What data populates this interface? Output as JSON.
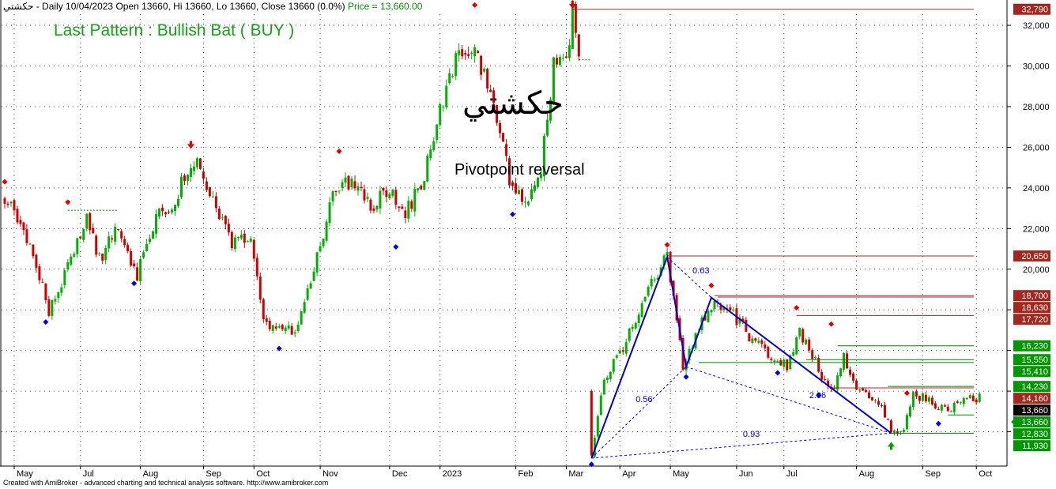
{
  "header": {
    "symbol": "حكشتي",
    "info": " - Daily 10/04/2023 Open 13660, Hi 13660, Lo 13660, Close 13660 (0.0%)",
    "price_text": "Price = 13,660.00"
  },
  "annotations": {
    "pattern_label": "Last Pattern : Bullish Bat ( BUY )",
    "watermark": "حكشتي",
    "pivot_label": "Pivotpoint reversal"
  },
  "footer": "Created with AmiBroker - advanced charting and technical analysis software. http://www.amibroker.com",
  "colors": {
    "bull": "#00b000",
    "bear": "#d00000",
    "pattern_line": "#0000c8",
    "level_red": "#a52a2a",
    "level_green": "#008000",
    "label_red": "#a0281e",
    "label_green": "#009600",
    "label_black": "#000000",
    "grid": "#000000"
  },
  "chart_data": {
    "type": "candlestick",
    "y_axis": {
      "min": 10000,
      "max": 33500,
      "ticks": [
        12000,
        14000,
        16000,
        18000,
        20000,
        22000,
        24000,
        26000,
        28000,
        30000,
        32000
      ],
      "tick_labels": [
        "",
        "",
        "",
        "",
        "20,000",
        "22,000",
        "24,000",
        "26,000",
        "28,000",
        "30,000",
        "32,000"
      ]
    },
    "x_axis": {
      "labels": [
        "May",
        "Jul",
        "Aug",
        "Sep",
        "Oct",
        "Nov",
        "Dec",
        "2023",
        "Feb",
        "Mar",
        "Apr",
        "May",
        "Jun",
        "Jul",
        "Aug",
        "Sep",
        "Oct"
      ]
    },
    "grid": "dotted",
    "anchors": [
      {
        "i": 0,
        "c": 23500
      },
      {
        "i": 8,
        "c": 21200
      },
      {
        "i": 14,
        "c": 18000
      },
      {
        "i": 20,
        "c": 20000
      },
      {
        "i": 26,
        "c": 22500
      },
      {
        "i": 30,
        "c": 20500
      },
      {
        "i": 36,
        "c": 22000
      },
      {
        "i": 42,
        "c": 19700
      },
      {
        "i": 48,
        "c": 22500
      },
      {
        "i": 54,
        "c": 23500
      },
      {
        "i": 60,
        "c": 25400
      },
      {
        "i": 66,
        "c": 23200
      },
      {
        "i": 72,
        "c": 21200
      },
      {
        "i": 78,
        "c": 21500
      },
      {
        "i": 82,
        "c": 17500
      },
      {
        "i": 88,
        "c": 16800
      },
      {
        "i": 93,
        "c": 17200
      },
      {
        "i": 98,
        "c": 20000
      },
      {
        "i": 104,
        "c": 23500
      },
      {
        "i": 110,
        "c": 24500
      },
      {
        "i": 116,
        "c": 23000
      },
      {
        "i": 122,
        "c": 24000
      },
      {
        "i": 127,
        "c": 22700
      },
      {
        "i": 133,
        "c": 24500
      },
      {
        "i": 139,
        "c": 28500
      },
      {
        "i": 145,
        "c": 31000
      },
      {
        "i": 150,
        "c": 30500
      },
      {
        "i": 154,
        "c": 28700
      },
      {
        "i": 160,
        "c": 24500
      },
      {
        "i": 166,
        "c": 23300
      },
      {
        "i": 170,
        "c": 25000
      },
      {
        "i": 174,
        "c": 30000
      },
      {
        "i": 178,
        "c": 30000
      },
      {
        "i": 180,
        "c": 32700
      },
      {
        "i": 182,
        "c": 30300
      },
      {
        "i": 186,
        "c": 10700
      },
      {
        "i": 190,
        "c": 14500
      },
      {
        "i": 196,
        "c": 16200
      },
      {
        "i": 205,
        "c": 19200
      },
      {
        "i": 210,
        "c": 20600
      },
      {
        "i": 215,
        "c": 15200
      },
      {
        "i": 220,
        "c": 17100
      },
      {
        "i": 225,
        "c": 18400
      },
      {
        "i": 230,
        "c": 18000
      },
      {
        "i": 236,
        "c": 16700
      },
      {
        "i": 242,
        "c": 15900
      },
      {
        "i": 248,
        "c": 15200
      },
      {
        "i": 252,
        "c": 17000
      },
      {
        "i": 257,
        "c": 15400
      },
      {
        "i": 262,
        "c": 13900
      },
      {
        "i": 266,
        "c": 15700
      },
      {
        "i": 270,
        "c": 14200
      },
      {
        "i": 276,
        "c": 13600
      },
      {
        "i": 282,
        "c": 11900
      },
      {
        "i": 285,
        "c": 12000
      },
      {
        "i": 288,
        "c": 13900
      },
      {
        "i": 294,
        "c": 13400
      },
      {
        "i": 299,
        "c": 13000
      },
      {
        "i": 304,
        "c": 13660
      }
    ],
    "date_ticks": [
      {
        "label": "May",
        "i": 3
      },
      {
        "label": "Jul",
        "i": 24
      },
      {
        "label": "Aug",
        "i": 43
      },
      {
        "label": "Sep",
        "i": 63
      },
      {
        "label": "Oct",
        "i": 79
      },
      {
        "label": "Nov",
        "i": 100
      },
      {
        "label": "Dec",
        "i": 122
      },
      {
        "label": "2023",
        "i": 138
      },
      {
        "label": "Feb",
        "i": 162
      },
      {
        "label": "Mar",
        "i": 178
      },
      {
        "label": "Apr",
        "i": 195
      },
      {
        "label": "May",
        "i": 211
      },
      {
        "label": "Jun",
        "i": 232
      },
      {
        "label": "Jul",
        "i": 247
      },
      {
        "label": "Aug",
        "i": 270
      },
      {
        "label": "Sep",
        "i": 291
      },
      {
        "label": "Oct",
        "i": 308
      }
    ],
    "pivot_highs": [
      {
        "i": 0,
        "v": 24300
      },
      {
        "i": 20,
        "v": 23300
      },
      {
        "i": 106,
        "v": 25800
      },
      {
        "i": 149,
        "v": 33000
      },
      {
        "i": 210,
        "v": 21200
      },
      {
        "i": 224,
        "v": 19200
      },
      {
        "i": 251,
        "v": 18100
      },
      {
        "i": 262,
        "v": 17300
      },
      {
        "i": 286,
        "v": 13900
      }
    ],
    "pivot_lows": [
      {
        "i": 13,
        "v": 17400
      },
      {
        "i": 41,
        "v": 19300
      },
      {
        "i": 87,
        "v": 16100
      },
      {
        "i": 124,
        "v": 21100
      },
      {
        "i": 161,
        "v": 22700
      },
      {
        "i": 186,
        "v": 10400
      },
      {
        "i": 216,
        "v": 14700
      },
      {
        "i": 245,
        "v": 14900
      },
      {
        "i": 258,
        "v": 13800
      },
      {
        "i": 296,
        "v": 12400
      }
    ],
    "arrows_down": [
      {
        "i": 59,
        "v": 26000
      },
      {
        "i": 180,
        "v": 32900
      }
    ],
    "arrows_up": [
      {
        "i": 281,
        "v": 11500
      }
    ],
    "pattern": {
      "name": "Bullish Bat",
      "points": [
        {
          "i": 186,
          "v": 10700
        },
        {
          "i": 210,
          "v": 20600
        },
        {
          "i": 216,
          "v": 15200
        },
        {
          "i": 224,
          "v": 18600
        },
        {
          "i": 281,
          "v": 11930
        }
      ],
      "dashed_links": [
        {
          "a": {
            "i": 186,
            "v": 10700
          },
          "b": {
            "i": 216,
            "v": 15200
          }
        },
        {
          "a": {
            "i": 210,
            "v": 20600
          },
          "b": {
            "i": 224,
            "v": 18600
          }
        },
        {
          "a": {
            "i": 216,
            "v": 15200
          },
          "b": {
            "i": 281,
            "v": 11930
          }
        },
        {
          "a": {
            "i": 186,
            "v": 10700
          },
          "b": {
            "i": 281,
            "v": 11930
          }
        }
      ],
      "ratios": [
        {
          "text": "0.63",
          "i": 218,
          "v": 19800
        },
        {
          "text": "0.56",
          "i": 200,
          "v": 13450
        },
        {
          "text": "2.06",
          "i": 255,
          "v": 13660
        },
        {
          "text": "0.93",
          "i": 234,
          "v": 11750
        }
      ]
    },
    "levels": [
      {
        "v": 32790,
        "from": 180,
        "color": "red"
      },
      {
        "v": 20650,
        "from": 210,
        "color": "red"
      },
      {
        "v": 18700,
        "from": 225,
        "color": "red"
      },
      {
        "v": 18630,
        "from": 226,
        "color": "red"
      },
      {
        "v": 17720,
        "from": 251,
        "color": "red"
      },
      {
        "v": 16230,
        "from": 264,
        "color": "green"
      },
      {
        "v": 15550,
        "from": 254,
        "color": "green"
      },
      {
        "v": 15410,
        "from": 220,
        "color": "green"
      },
      {
        "v": 14160,
        "from": 262,
        "color": "red"
      },
      {
        "v": 14230,
        "from": 280,
        "color": "green"
      },
      {
        "v": 12830,
        "from": 299,
        "color": "green"
      },
      {
        "v": 11930,
        "from": 281,
        "color": "green"
      },
      {
        "v": 22900,
        "from": 20,
        "to": 36,
        "color": "green",
        "dashed": true
      },
      {
        "v": 30300,
        "from": 182,
        "to": 186,
        "color": "green",
        "dashed": true
      }
    ],
    "price_labels": [
      {
        "v": 32790,
        "text": "32,790",
        "color": "red"
      },
      {
        "v": 20650,
        "text": "20,650",
        "color": "red"
      },
      {
        "v": 18700,
        "text": "18,700",
        "color": "red"
      },
      {
        "v": 18630,
        "text": "18,630",
        "color": "red"
      },
      {
        "v": 17720,
        "text": "17,720",
        "color": "red"
      },
      {
        "v": 16230,
        "text": "16,230",
        "color": "green"
      },
      {
        "v": 15550,
        "text": "15,550",
        "color": "green"
      },
      {
        "v": 15410,
        "text": "15,410",
        "color": "green"
      },
      {
        "v": 14230,
        "text": "14,230",
        "color": "green"
      },
      {
        "v": 14160,
        "text": "14,160",
        "color": "red"
      },
      {
        "v": 13660,
        "text": "13,660",
        "color": "black"
      },
      {
        "v": 13660,
        "text": "13,660",
        "color": "green",
        "pointer": true
      },
      {
        "v": 12830,
        "text": "12,830",
        "color": "green"
      },
      {
        "v": 11930,
        "text": "11,930",
        "color": "green"
      }
    ]
  }
}
